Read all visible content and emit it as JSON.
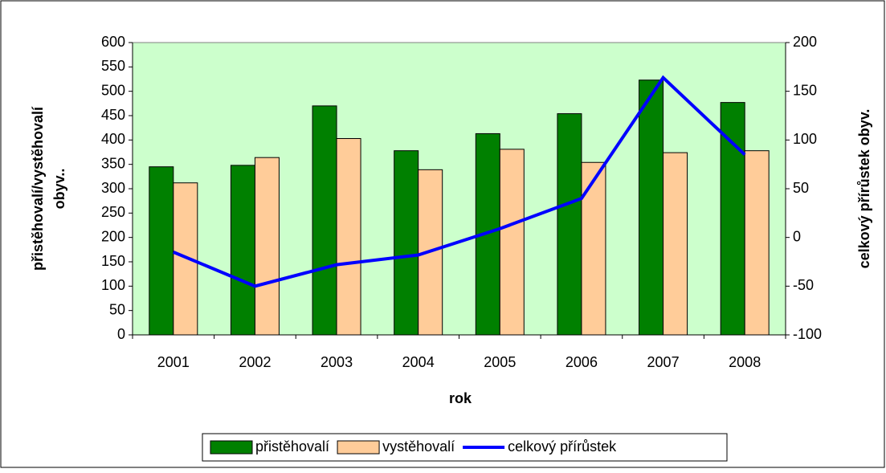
{
  "chart_data": {
    "type": "bar-line",
    "categories": [
      "2001",
      "2002",
      "2003",
      "2004",
      "2005",
      "2006",
      "2007",
      "2008"
    ],
    "series": [
      {
        "name": "přistěhovalí",
        "type": "bar",
        "color": "#008000",
        "values": [
          345,
          348,
          470,
          378,
          413,
          454,
          523,
          477
        ]
      },
      {
        "name": "vystěhovalí",
        "type": "bar",
        "color": "#FFCC99",
        "values": [
          312,
          364,
          403,
          339,
          381,
          354,
          374,
          378
        ]
      },
      {
        "name": "celkový přírůstek",
        "type": "line",
        "axis": "y2",
        "color": "#0000FF",
        "values": [
          -15,
          -50,
          -28,
          -18,
          9,
          40,
          164,
          85
        ]
      }
    ],
    "xlabel": "rok",
    "ylabel": [
      "přistěhovalí/vystěhovalí",
      "obyv.."
    ],
    "y2label": "celkový přírůstek obyv.",
    "ylim": [
      0,
      600
    ],
    "yticks": [
      0,
      50,
      100,
      150,
      200,
      250,
      300,
      350,
      400,
      450,
      500,
      550,
      600
    ],
    "y2lim": [
      -100,
      200
    ],
    "y2ticks": [
      -100,
      -50,
      0,
      50,
      100,
      150,
      200
    ],
    "plot_background": "#CCFFCC",
    "legend": "bottom"
  }
}
